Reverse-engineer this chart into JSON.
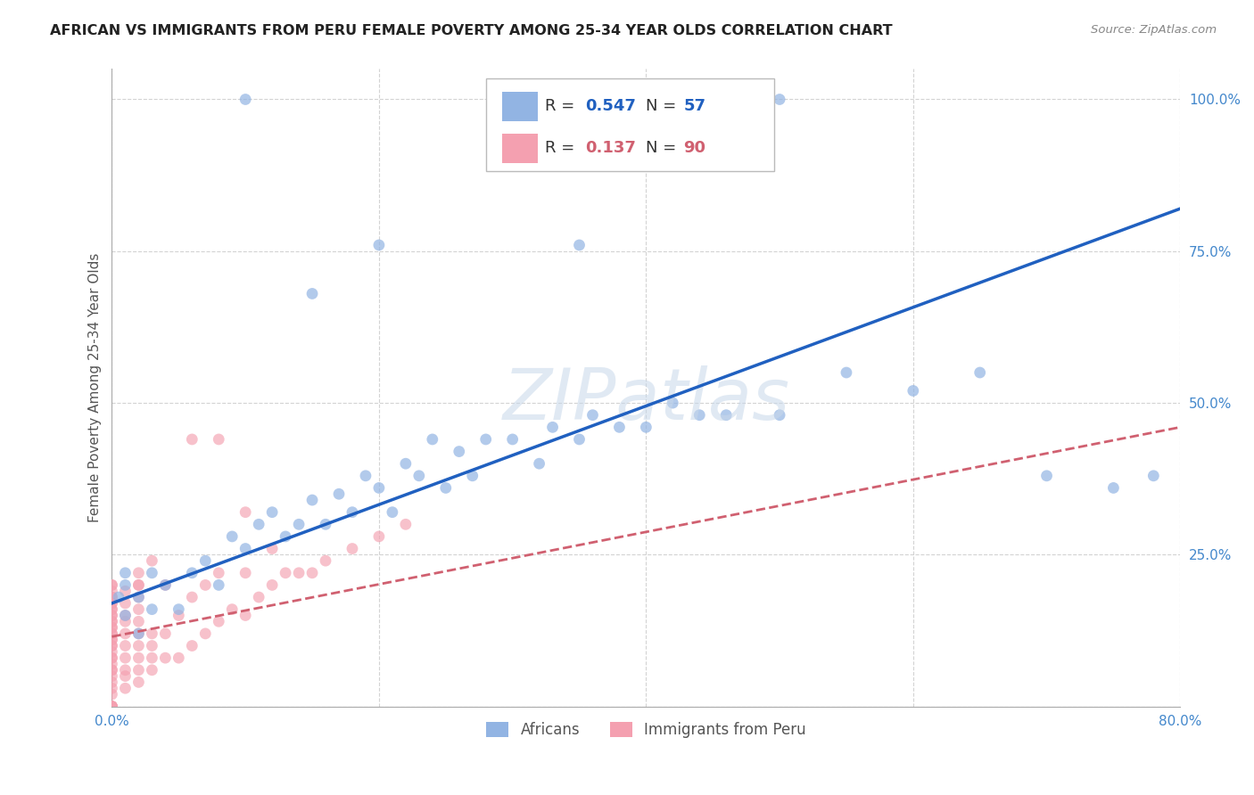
{
  "title": "AFRICAN VS IMMIGRANTS FROM PERU FEMALE POVERTY AMONG 25-34 YEAR OLDS CORRELATION CHART",
  "source": "Source: ZipAtlas.com",
  "ylabel": "Female Poverty Among 25-34 Year Olds",
  "xlim": [
    0,
    0.8
  ],
  "ylim": [
    0,
    1.05
  ],
  "xticks": [
    0.0,
    0.2,
    0.4,
    0.6,
    0.8
  ],
  "xticklabels": [
    "0.0%",
    "",
    "",
    "",
    "80.0%"
  ],
  "yticks": [
    0.0,
    0.25,
    0.5,
    0.75,
    1.0
  ],
  "yticklabels": [
    "",
    "25.0%",
    "50.0%",
    "75.0%",
    "100.0%"
  ],
  "africans_R": "0.547",
  "africans_N": "57",
  "peru_R": "0.137",
  "peru_N": "90",
  "africans_color": "#92b4e3",
  "peru_color": "#f4a0b0",
  "africans_line_color": "#2060c0",
  "peru_line_color": "#d06070",
  "africans_x": [
    0.005,
    0.01,
    0.01,
    0.01,
    0.02,
    0.02,
    0.03,
    0.03,
    0.04,
    0.05,
    0.06,
    0.07,
    0.08,
    0.09,
    0.1,
    0.11,
    0.12,
    0.13,
    0.14,
    0.15,
    0.16,
    0.17,
    0.18,
    0.19,
    0.2,
    0.21,
    0.22,
    0.23,
    0.24,
    0.25,
    0.26,
    0.27,
    0.28,
    0.3,
    0.32,
    0.33,
    0.35,
    0.36,
    0.38,
    0.4,
    0.42,
    0.44,
    0.46,
    0.5,
    0.55,
    0.6,
    0.65,
    0.7,
    0.75,
    0.78,
    0.15,
    0.2,
    0.3,
    0.35,
    0.4,
    0.1,
    0.5
  ],
  "africans_y": [
    0.18,
    0.2,
    0.22,
    0.15,
    0.18,
    0.12,
    0.22,
    0.16,
    0.2,
    0.16,
    0.22,
    0.24,
    0.2,
    0.28,
    0.26,
    0.3,
    0.32,
    0.28,
    0.3,
    0.34,
    0.3,
    0.35,
    0.32,
    0.38,
    0.36,
    0.32,
    0.4,
    0.38,
    0.44,
    0.36,
    0.42,
    0.38,
    0.44,
    0.44,
    0.4,
    0.46,
    0.44,
    0.48,
    0.46,
    0.46,
    0.5,
    0.48,
    0.48,
    0.48,
    0.55,
    0.52,
    0.55,
    0.38,
    0.36,
    0.38,
    0.68,
    0.76,
    1.0,
    0.76,
    1.0,
    1.0,
    1.0
  ],
  "peru_x": [
    0.0,
    0.0,
    0.0,
    0.0,
    0.0,
    0.0,
    0.0,
    0.0,
    0.0,
    0.0,
    0.0,
    0.0,
    0.0,
    0.0,
    0.0,
    0.0,
    0.0,
    0.0,
    0.0,
    0.0,
    0.0,
    0.0,
    0.0,
    0.0,
    0.0,
    0.0,
    0.0,
    0.0,
    0.0,
    0.0,
    0.0,
    0.0,
    0.0,
    0.0,
    0.0,
    0.0,
    0.0,
    0.01,
    0.01,
    0.01,
    0.01,
    0.01,
    0.01,
    0.01,
    0.01,
    0.01,
    0.01,
    0.02,
    0.02,
    0.02,
    0.02,
    0.02,
    0.02,
    0.02,
    0.02,
    0.02,
    0.02,
    0.03,
    0.03,
    0.03,
    0.03,
    0.04,
    0.04,
    0.05,
    0.05,
    0.06,
    0.06,
    0.07,
    0.07,
    0.08,
    0.08,
    0.09,
    0.1,
    0.1,
    0.11,
    0.12,
    0.13,
    0.14,
    0.15,
    0.16,
    0.18,
    0.2,
    0.22,
    0.06,
    0.08,
    0.1,
    0.12,
    0.04,
    0.03,
    0.02
  ],
  "peru_y": [
    0.0,
    0.0,
    0.0,
    0.0,
    0.0,
    0.0,
    0.02,
    0.03,
    0.04,
    0.05,
    0.06,
    0.06,
    0.07,
    0.08,
    0.08,
    0.09,
    0.1,
    0.1,
    0.11,
    0.11,
    0.12,
    0.12,
    0.13,
    0.13,
    0.14,
    0.14,
    0.15,
    0.15,
    0.16,
    0.16,
    0.17,
    0.17,
    0.18,
    0.18,
    0.19,
    0.2,
    0.2,
    0.03,
    0.05,
    0.06,
    0.08,
    0.1,
    0.12,
    0.14,
    0.15,
    0.17,
    0.19,
    0.04,
    0.06,
    0.08,
    0.1,
    0.12,
    0.14,
    0.16,
    0.18,
    0.2,
    0.22,
    0.06,
    0.08,
    0.1,
    0.12,
    0.08,
    0.12,
    0.08,
    0.15,
    0.1,
    0.18,
    0.12,
    0.2,
    0.14,
    0.22,
    0.16,
    0.15,
    0.22,
    0.18,
    0.2,
    0.22,
    0.22,
    0.22,
    0.24,
    0.26,
    0.28,
    0.3,
    0.44,
    0.44,
    0.32,
    0.26,
    0.2,
    0.24,
    0.2
  ],
  "watermark": "ZIPatlas",
  "africans_line_x0": 0.0,
  "africans_line_x1": 0.8,
  "africans_line_y0": 0.17,
  "africans_line_y1": 0.82,
  "peru_line_x0": 0.0,
  "peru_line_x1": 0.8,
  "peru_line_y0": 0.115,
  "peru_line_y1": 0.46
}
